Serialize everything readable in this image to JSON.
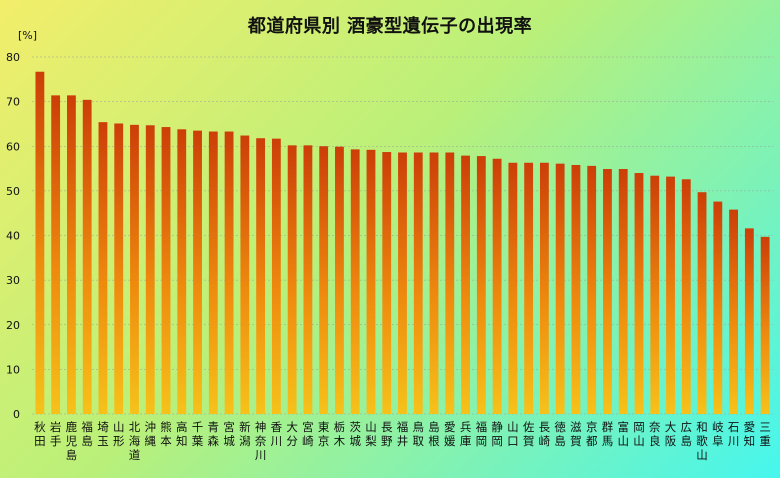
{
  "chart_data": {
    "type": "bar",
    "title": "都道府県別 酒豪型遺伝子の出現率",
    "ylabel": "[%]",
    "ylim": [
      0,
      80
    ],
    "yticks": [
      0,
      10,
      20,
      30,
      40,
      50,
      60,
      70,
      80
    ],
    "grid": true,
    "categories": [
      "秋田",
      "岩手",
      "鹿児島",
      "福島",
      "埼玉",
      "山形",
      "北海道",
      "沖縄",
      "熊本",
      "高知",
      "千葉",
      "青森",
      "宮城",
      "新潟",
      "神奈川",
      "香川",
      "大分",
      "宮崎",
      "東京",
      "栃木",
      "茨城",
      "山梨",
      "長野",
      "福井",
      "鳥取",
      "島根",
      "愛媛",
      "兵庫",
      "福岡",
      "静岡",
      "山口",
      "佐賀",
      "長崎",
      "徳島",
      "滋賀",
      "京都",
      "群馬",
      "富山",
      "岡山",
      "奈良",
      "大阪",
      "広島",
      "和歌山",
      "岐阜",
      "石川",
      "愛知",
      "三重"
    ],
    "values": [
      76.7,
      71.4,
      71.4,
      70.4,
      65.4,
      65.1,
      64.8,
      64.7,
      64.3,
      63.8,
      63.5,
      63.3,
      63.3,
      62.4,
      61.8,
      61.7,
      60.2,
      60.2,
      60.0,
      59.9,
      59.3,
      59.2,
      58.7,
      58.6,
      58.6,
      58.6,
      58.6,
      57.9,
      57.8,
      57.2,
      56.3,
      56.3,
      56.3,
      56.1,
      55.8,
      55.6,
      54.9,
      54.9,
      54.0,
      53.4,
      53.2,
      52.6,
      49.7,
      47.6,
      45.8,
      41.6,
      39.7
    ],
    "colors": {
      "bar_top": "#cc3e08",
      "bar_mid": "#ee8a0e",
      "bar_bottom": "#f6c21a"
    }
  }
}
